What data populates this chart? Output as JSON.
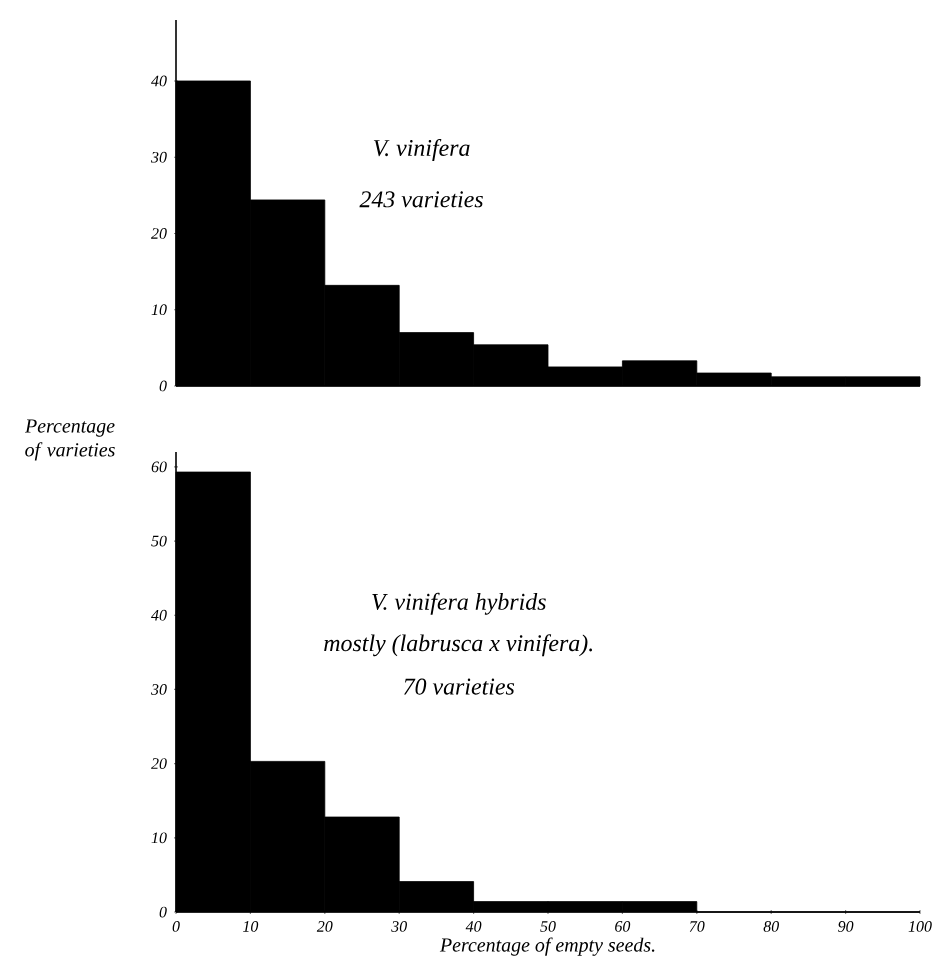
{
  "chart_data": [
    {
      "type": "histogram",
      "bins": [
        0,
        10,
        20,
        30,
        40,
        50,
        60,
        70,
        80,
        90,
        100
      ],
      "values": [
        40,
        24.4,
        13.2,
        7.0,
        5.4,
        2.5,
        3.3,
        1.7,
        1.2,
        1.2
      ],
      "color": "#000000",
      "xlim": [
        0,
        100
      ],
      "ylim": [
        0,
        48
      ],
      "yticks": [
        0,
        10,
        20,
        30,
        40
      ],
      "tick_labels": "y",
      "ylabel": "Percentage of varieties",
      "annotations": [
        "V. vinifera",
        "243 varieties"
      ]
    },
    {
      "type": "histogram",
      "bins": [
        0,
        10,
        20,
        30,
        40,
        50,
        60,
        70,
        80,
        90,
        100
      ],
      "values": [
        59.3,
        20.3,
        12.8,
        4.1,
        1.4,
        1.4,
        1.4,
        0,
        0,
        0
      ],
      "color": "#000000",
      "xlim": [
        0,
        100
      ],
      "ylim": [
        0,
        62
      ],
      "xticks": [
        0,
        10,
        20,
        30,
        40,
        50,
        60,
        70,
        80,
        90,
        100
      ],
      "yticks": [
        0,
        10,
        20,
        30,
        40,
        50,
        60
      ],
      "xlabel": "Percentage of empty seeds.",
      "annotations": [
        "V. vinifera  hybrids",
        "mostly (labrusca x vinifera).",
        "70 varieties"
      ]
    }
  ]
}
